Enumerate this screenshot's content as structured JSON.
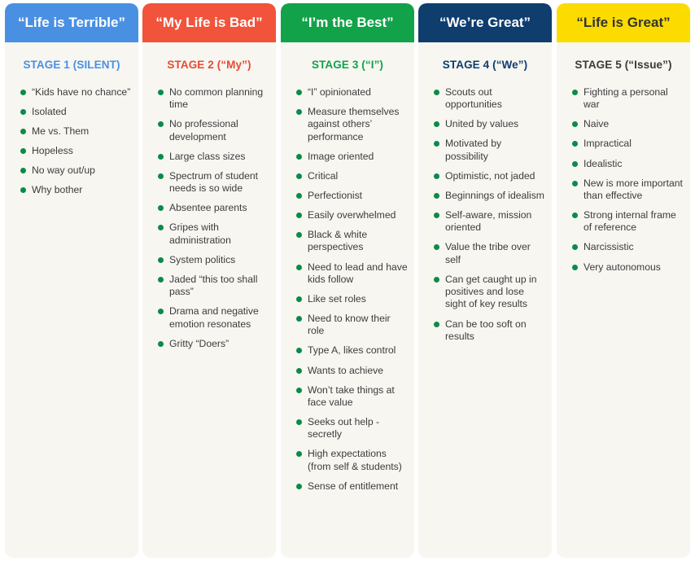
{
  "columns": [
    {
      "header": "“Life is Terrible”",
      "stage": "STAGE 1 (SILENT)",
      "colors": {
        "header_bg": "#4a90e2",
        "header_text": "#ffffff",
        "stage_text": "#4a90e2"
      },
      "items": [
        "“Kids have no chance”",
        "Isolated",
        "Me vs. Them",
        "Hopeless",
        "No way out/up",
        "Why bother"
      ]
    },
    {
      "header": "“My Life is Bad”",
      "stage": "STAGE 2 (“My”)",
      "colors": {
        "header_bg": "#f2533b",
        "header_text": "#ffffff",
        "stage_text": "#e84a33"
      },
      "items": [
        "No common planning time",
        "No professional development",
        "Large class sizes",
        "Spectrum of student needs is so wide",
        "Absentee parents",
        "Gripes with administration",
        "System politics",
        "Jaded “this too shall pass”",
        "Drama and negative emotion resonates",
        "Gritty “Doers”"
      ]
    },
    {
      "header": "“I’m the Best”",
      "stage": "STAGE 3 (“I”)",
      "colors": {
        "header_bg": "#12a24a",
        "header_text": "#ffffff",
        "stage_text": "#12a24a"
      },
      "items": [
        "“I” opinionated",
        "Measure themselves against others’ performance",
        "Image oriented",
        "Critical",
        "Perfectionist",
        "Easily overwhelmed",
        "Black & white perspectives",
        "Need to lead and have kids follow",
        "Like set roles",
        "Need to know their role",
        "Type A, likes control",
        "Wants to achieve",
        "Won’t take things at face value",
        "Seeks out help - secretly",
        "High expectations (from self & students)",
        "Sense of entitlement"
      ]
    },
    {
      "header": "“We’re Great”",
      "stage": "STAGE 4 (“We”)",
      "colors": {
        "header_bg": "#0e3d6e",
        "header_text": "#ffffff",
        "stage_text": "#0e3d6e"
      },
      "items": [
        "Scouts out opportunities",
        "United by values",
        "Motivated by possibility",
        "Optimistic, not jaded",
        "Beginnings of idealism",
        "Self-aware, mission oriented",
        "Value the tribe over self",
        "Can get caught up in positives and lose sight of key results",
        "Can be too soft on results"
      ]
    },
    {
      "header": "“Life is Great”",
      "stage": "STAGE 5 (“Issue”)",
      "colors": {
        "header_bg": "#fcdc00",
        "header_text": "#333333",
        "stage_text": "#3a3a3a"
      },
      "items": [
        "Fighting a personal war",
        "Naive",
        "Impractical",
        "Idealistic",
        "New is more important than effective",
        "Strong internal frame of reference",
        "Narcissistic",
        "Very autonomous"
      ]
    }
  ]
}
